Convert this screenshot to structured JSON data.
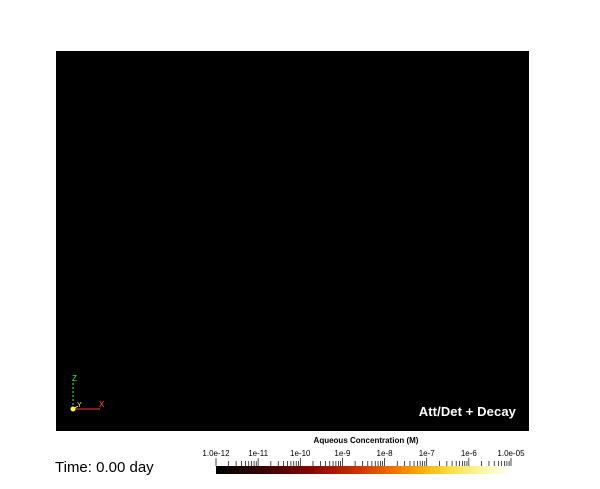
{
  "scene": {
    "label": "Att/Det + Decay",
    "background_color": "#000000"
  },
  "time": {
    "label": "Time: 0.00 day"
  },
  "axes_widget": {
    "z_label": "Z",
    "y_label": "Y",
    "x_label": "X",
    "colors": {
      "x": "#ff3333",
      "y": "#ffff33",
      "z": "#33ff33"
    }
  },
  "colorbar": {
    "title": "Aqueous Concentration (M)",
    "scale": "log",
    "range": [
      "1.0e-12",
      "1.0e-05"
    ],
    "tick_labels": [
      "1.0e-12",
      "1e-11",
      "1e-10",
      "1e-9",
      "1e-8",
      "1e-7",
      "1e-6",
      "1.0e-05"
    ],
    "colormap": "black-body"
  }
}
